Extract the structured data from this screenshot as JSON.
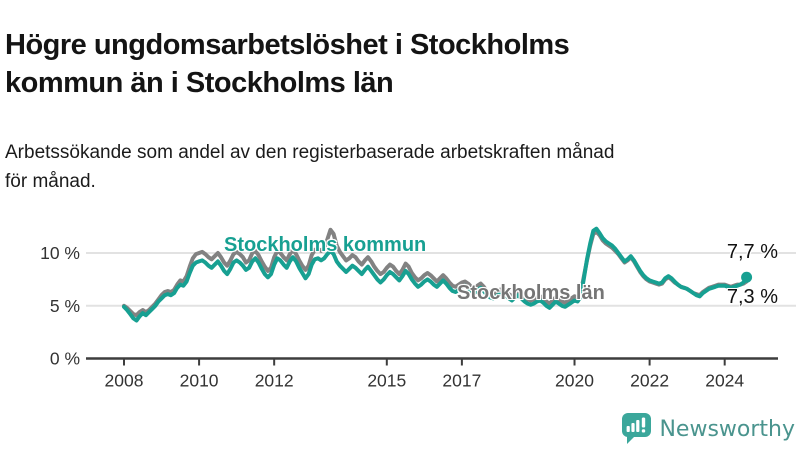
{
  "header": {
    "title": "Högre ungdomsarbetslöshet i Stockholms\nkommun än i Stockholms län",
    "subtitle": "Arbetssökande som andel av den registerbaserade arbetskraften månad\nför månad."
  },
  "footer": {
    "brand": "Newsworthy",
    "logo_icon": "newsworthy-speech-bubble-bar-chart-icon",
    "brand_color": "#3ba79b"
  },
  "chart_data": {
    "type": "line",
    "title": "Högre ungdomsarbetslöshet i Stockholms kommun än i Stockholms län",
    "subtitle": "Arbetssökande som andel av den registerbaserade arbetskraften månad för månad.",
    "frequency": "monthly",
    "x_start_year": 2008,
    "x_start": "2008-01",
    "x_end": "2024-08",
    "x_tick_years": [
      2008,
      2010,
      2012,
      2015,
      2017,
      2020,
      2022,
      2024
    ],
    "y_ticks": [
      {
        "value": 0,
        "label": "0 %"
      },
      {
        "value": 5,
        "label": "5 %"
      },
      {
        "value": 10,
        "label": "10 %"
      }
    ],
    "ylim": [
      0,
      13
    ],
    "unit": "%",
    "grid": "horizontal",
    "gridline_color": "#e2e2e2",
    "axis_color": "#3d3d3d",
    "series": [
      {
        "id": "stockholms-lan",
        "name": "Stockholms län",
        "color": "#828282",
        "end_dot": false,
        "end_value_label": "7,3 %",
        "values": [
          5.0,
          4.8,
          4.5,
          4.2,
          4.1,
          4.4,
          4.6,
          4.4,
          4.6,
          4.9,
          5.2,
          5.6,
          6.0,
          6.3,
          6.4,
          6.3,
          6.5,
          7.0,
          7.4,
          7.3,
          7.8,
          8.7,
          9.5,
          9.9,
          10.0,
          10.1,
          9.9,
          9.6,
          9.4,
          9.7,
          10.0,
          9.6,
          9.1,
          8.8,
          9.3,
          9.9,
          10.1,
          9.9,
          9.6,
          9.1,
          9.3,
          10.0,
          10.2,
          9.8,
          9.2,
          8.7,
          8.3,
          8.6,
          9.6,
          10.2,
          10.0,
          9.6,
          9.3,
          9.9,
          10.3,
          9.9,
          9.3,
          8.8,
          8.4,
          8.8,
          9.8,
          10.3,
          10.4,
          10.2,
          10.5,
          11.3,
          12.2,
          11.8,
          10.7,
          10.1,
          9.7,
          9.3,
          9.5,
          9.8,
          9.6,
          9.2,
          8.9,
          9.3,
          9.6,
          9.2,
          8.7,
          8.3,
          8.0,
          8.2,
          8.6,
          8.9,
          8.7,
          8.3,
          8.0,
          8.4,
          9.0,
          8.7,
          8.1,
          7.7,
          7.4,
          7.6,
          7.9,
          8.1,
          7.9,
          7.6,
          7.3,
          7.6,
          7.9,
          7.6,
          7.2,
          6.9,
          6.8,
          7.0,
          7.2,
          7.3,
          7.1,
          6.8,
          6.6,
          6.9,
          7.1,
          6.8,
          6.4,
          6.2,
          6.1,
          6.3,
          6.5,
          6.6,
          6.4,
          6.1,
          5.9,
          6.2,
          6.4,
          6.1,
          5.8,
          5.6,
          5.5,
          5.6,
          5.8,
          5.9,
          5.7,
          5.4,
          5.2,
          5.5,
          5.8,
          5.6,
          5.4,
          5.3,
          5.5,
          5.7,
          5.9,
          5.8,
          6.2,
          7.8,
          9.3,
          10.7,
          11.8,
          12.0,
          11.7,
          11.2,
          10.9,
          10.7,
          10.5,
          10.2,
          9.9,
          9.5,
          9.1,
          9.3,
          9.6,
          9.2,
          8.7,
          8.2,
          7.8,
          7.5,
          7.3,
          7.2,
          7.1,
          7.0,
          7.1,
          7.5,
          7.7,
          7.5,
          7.2,
          7.0,
          6.8,
          6.7,
          6.6,
          6.4,
          6.2,
          6.1,
          6.0,
          6.3,
          6.5,
          6.7,
          6.8,
          6.9,
          7.0,
          7.0,
          7.0,
          6.9,
          6.8,
          6.9,
          7.0,
          7.0,
          7.1,
          7.3
        ]
      },
      {
        "id": "stockholms-kommun",
        "name": "Stockholms kommun",
        "color": "#17a092",
        "end_dot": true,
        "end_value_label": "7,7 %",
        "values": [
          4.9,
          4.6,
          4.2,
          3.8,
          3.6,
          4.0,
          4.3,
          4.1,
          4.4,
          4.7,
          5.0,
          5.4,
          5.7,
          6.0,
          6.1,
          6.0,
          6.2,
          6.7,
          7.0,
          6.9,
          7.3,
          8.1,
          8.8,
          9.1,
          9.2,
          9.3,
          9.1,
          8.8,
          8.6,
          8.9,
          9.2,
          8.8,
          8.3,
          8.0,
          8.5,
          9.1,
          9.3,
          9.1,
          8.8,
          8.4,
          8.6,
          9.2,
          9.5,
          9.1,
          8.5,
          8.0,
          7.7,
          8.0,
          8.9,
          9.5,
          9.3,
          8.9,
          8.6,
          9.2,
          9.6,
          9.2,
          8.6,
          8.1,
          7.6,
          8.0,
          8.9,
          9.4,
          9.5,
          9.3,
          9.5,
          9.9,
          10.2,
          9.9,
          9.2,
          8.8,
          8.5,
          8.2,
          8.5,
          8.8,
          8.6,
          8.3,
          8.0,
          8.4,
          8.7,
          8.3,
          7.9,
          7.5,
          7.2,
          7.5,
          7.9,
          8.2,
          8.0,
          7.7,
          7.4,
          7.8,
          8.3,
          8.0,
          7.5,
          7.1,
          6.8,
          7.0,
          7.3,
          7.5,
          7.3,
          7.0,
          6.8,
          7.1,
          7.4,
          7.1,
          6.7,
          6.4,
          6.3,
          6.5,
          6.8,
          6.9,
          6.7,
          6.4,
          6.2,
          6.5,
          6.7,
          6.4,
          6.0,
          5.8,
          5.7,
          5.9,
          6.1,
          6.2,
          6.0,
          5.7,
          5.5,
          5.8,
          6.0,
          5.7,
          5.4,
          5.2,
          5.1,
          5.2,
          5.4,
          5.5,
          5.3,
          5.0,
          4.8,
          5.1,
          5.4,
          5.2,
          5.0,
          4.9,
          5.1,
          5.3,
          5.5,
          5.4,
          5.9,
          7.6,
          9.4,
          10.9,
          12.1,
          12.3,
          11.9,
          11.4,
          11.1,
          10.9,
          10.7,
          10.4,
          10.0,
          9.6,
          9.2,
          9.4,
          9.7,
          9.3,
          8.8,
          8.3,
          7.9,
          7.6,
          7.4,
          7.3,
          7.2,
          7.1,
          7.2,
          7.6,
          7.8,
          7.6,
          7.3,
          7.0,
          6.8,
          6.7,
          6.6,
          6.4,
          6.2,
          6.0,
          5.9,
          6.2,
          6.4,
          6.6,
          6.7,
          6.8,
          6.9,
          6.9,
          6.9,
          6.8,
          6.7,
          6.8,
          6.9,
          7.0,
          7.2,
          7.7
        ]
      }
    ],
    "series_labels": [
      {
        "text": "Stockholms kommun",
        "color": "#17a092"
      },
      {
        "text": "Stockholms län",
        "color": "#757575"
      }
    ],
    "end_labels": [
      {
        "text": "7,7 %",
        "series": "Stockholms kommun"
      },
      {
        "text": "7,3 %",
        "series": "Stockholms län"
      }
    ]
  }
}
